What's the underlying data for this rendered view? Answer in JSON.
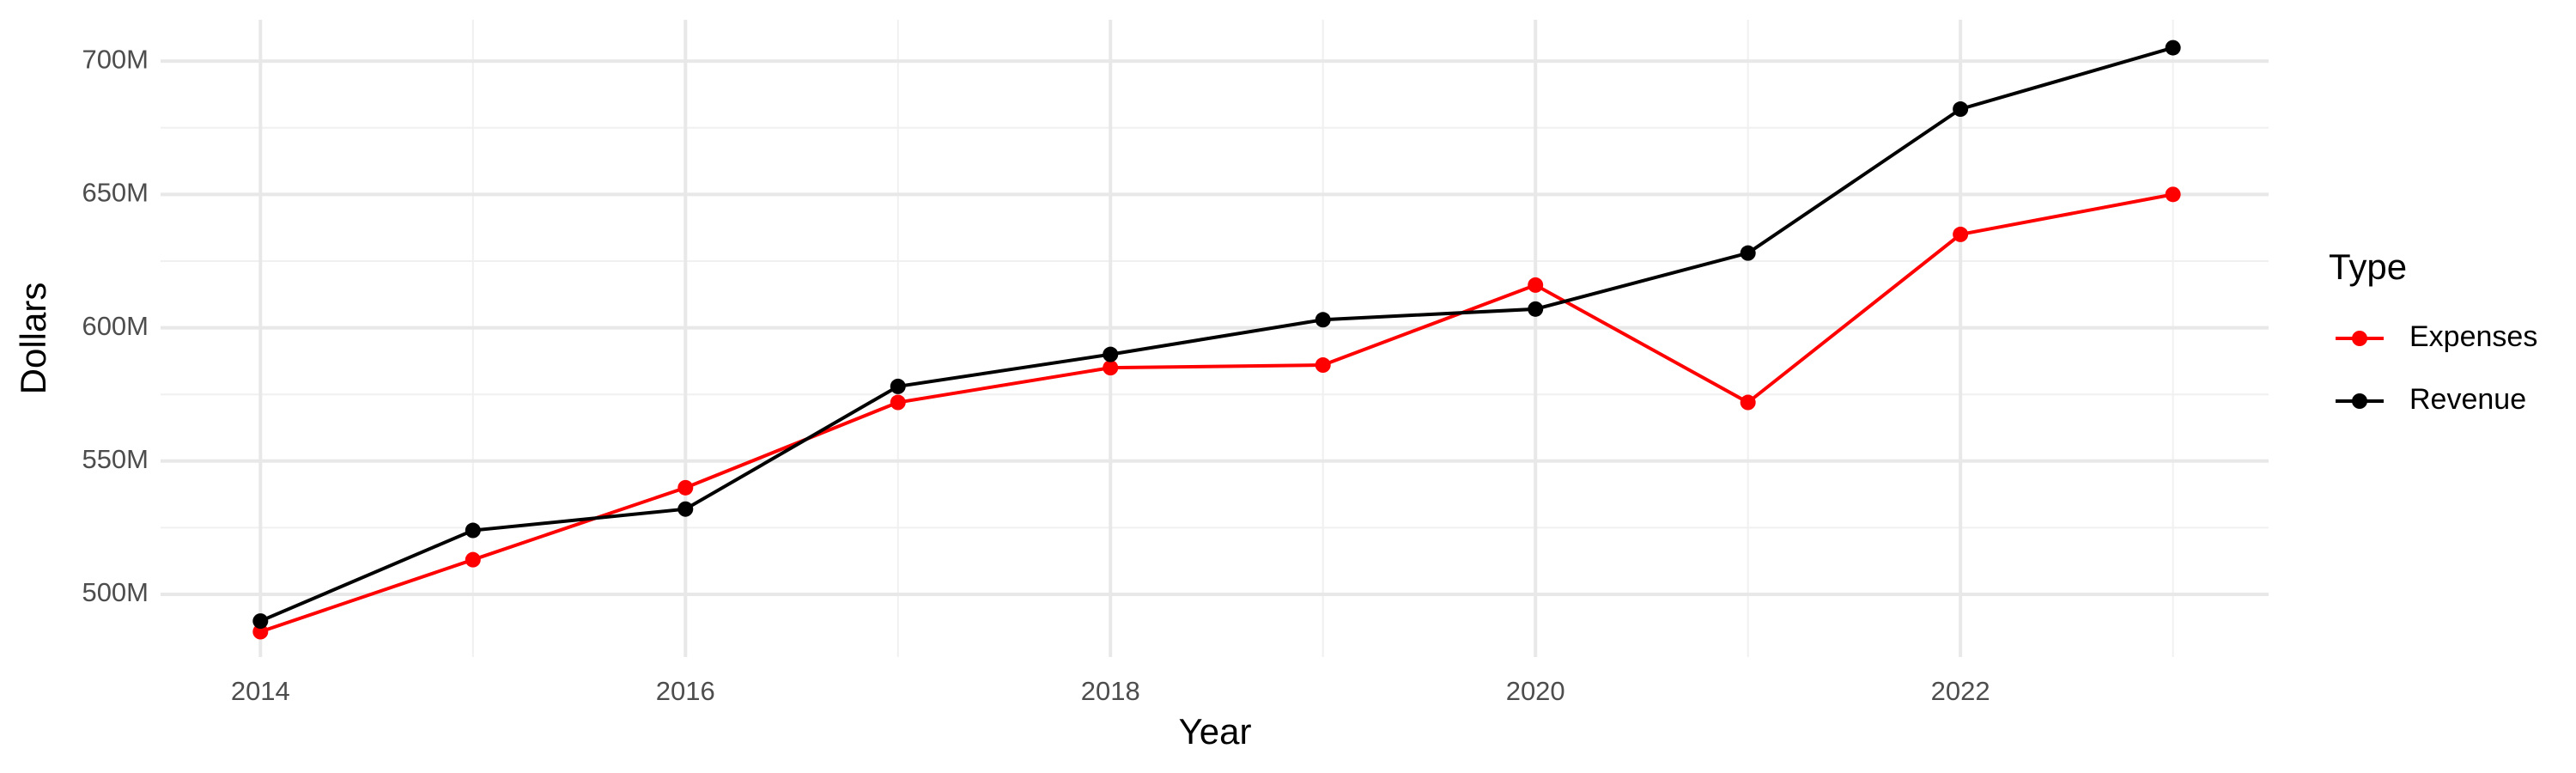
{
  "chart_data": {
    "type": "line",
    "x_label": "Year",
    "y_label": "Dollars",
    "legend_title": "Type",
    "x": [
      2014,
      2015,
      2016,
      2017,
      2018,
      2019,
      2020,
      2021,
      2022,
      2023
    ],
    "series": [
      {
        "name": "Expenses",
        "color": "#ff0000",
        "values": [
          486000000,
          513000000,
          540000000,
          572000000,
          585000000,
          586000000,
          616000000,
          572000000,
          635000000,
          650000000
        ]
      },
      {
        "name": "Revenue",
        "color": "#000000",
        "values": [
          490000000,
          524000000,
          532000000,
          578000000,
          590000000,
          603000000,
          607000000,
          628000000,
          682000000,
          705000000
        ]
      }
    ],
    "xlim": [
      2013.53,
      2023.45
    ],
    "xticks": [
      2014,
      2016,
      2018,
      2020,
      2022
    ],
    "ylim": [
      476500000,
      715500000
    ],
    "yticks": [
      {
        "value": 500000000,
        "label": "500M"
      },
      {
        "value": 550000000,
        "label": "550M"
      },
      {
        "value": 600000000,
        "label": "600M"
      },
      {
        "value": 650000000,
        "label": "650M"
      },
      {
        "value": 700000000,
        "label": "700M"
      }
    ],
    "grid": true,
    "legend": "right"
  }
}
